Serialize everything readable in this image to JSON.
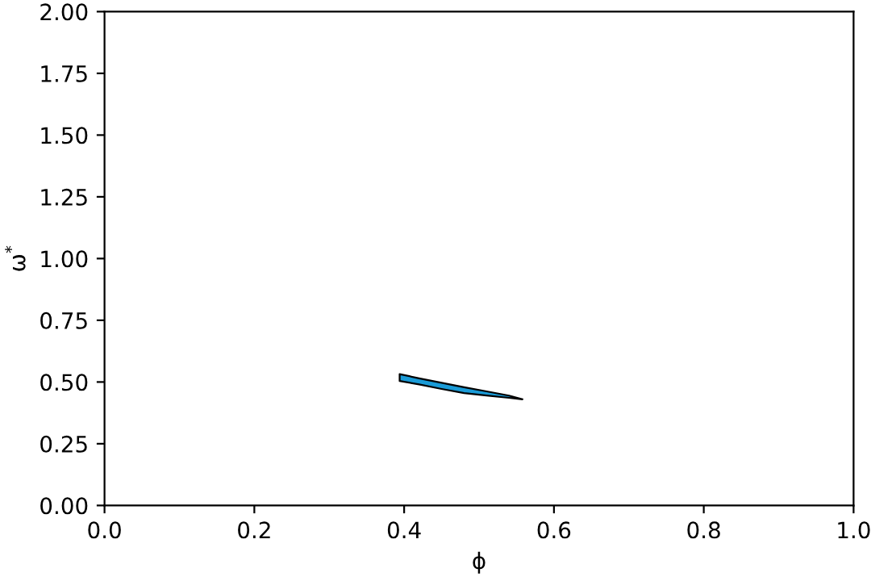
{
  "chart_data": {
    "type": "line",
    "xlabel": "ϕ",
    "ylabel": "ω$^{*}$",
    "xlim": [
      0,
      1
    ],
    "xticks": [
      {
        "value": 0,
        "label": "0.0"
      },
      0.2,
      0.4,
      0.6,
      0.8,
      {
        "value": 1,
        "label": "1.0"
      }
    ],
    "ylim": [
      0,
      2
    ],
    "yticks": [
      {
        "value": 0,
        "label": "0.00"
      },
      {
        "value": 0.25,
        "label": "0.25"
      },
      {
        "value": 0.5,
        "label": "0.50"
      },
      {
        "value": 0.75,
        "label": "0.75"
      },
      {
        "value": 1,
        "label": "1.00"
      },
      {
        "value": 1.25,
        "label": "1.25"
      },
      {
        "value": 1.5,
        "label": "1.50"
      },
      {
        "value": 1.75,
        "label": "1.75"
      },
      {
        "value": 2,
        "label": "2.00"
      }
    ],
    "grid": false,
    "legend": false,
    "series": [
      {
        "color": "#1a9bd7",
        "x": [
          0.394,
          0.42,
          0.45,
          0.48,
          0.51,
          0.54,
          0.558
        ],
        "values": [
          null,
          null,
          null,
          null,
          null,
          null,
          null
        ],
        "upper": [
          0.532,
          0.515,
          0.497,
          0.479,
          0.462,
          0.445,
          0.43
        ],
        "lower": [
          0.504,
          0.49,
          0.472,
          0.455,
          0.445,
          0.436,
          0.43
        ]
      }
    ]
  }
}
